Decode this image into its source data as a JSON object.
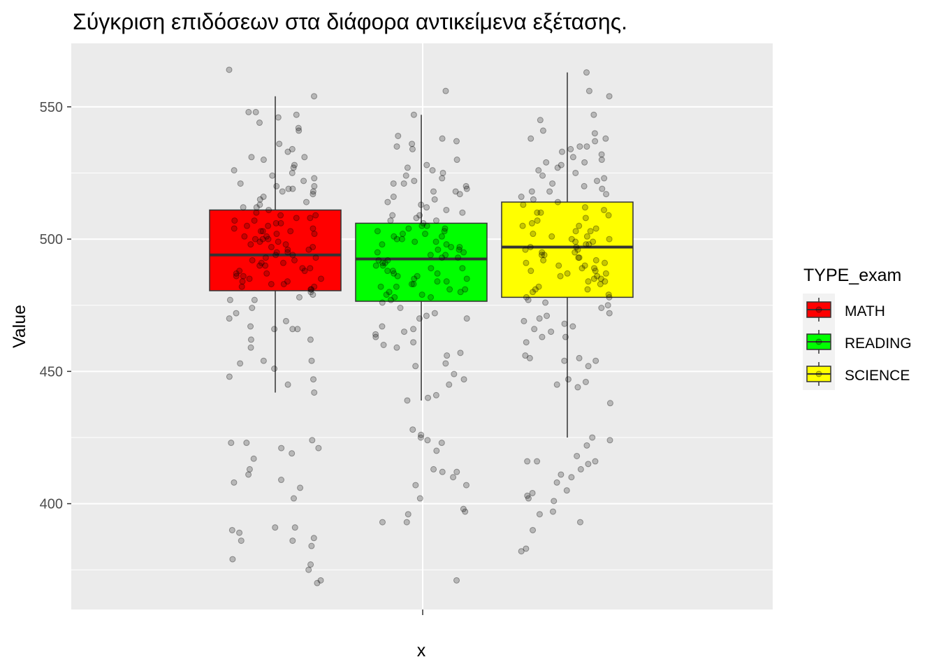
{
  "chart_data": {
    "type": "boxplot",
    "title": "Σύγκριση επιδόσεων στα διάφορα αντικείμενα εξέτασης.",
    "xlabel": "x",
    "ylabel": "Value",
    "ylim": [
      360,
      574
    ],
    "y_ticks": [
      400,
      450,
      500,
      550
    ],
    "y_tick_labels": [
      "400",
      "450",
      "500",
      "550"
    ],
    "grid": true,
    "legend": {
      "title": "TYPE_exam",
      "placement": "right"
    },
    "series": [
      {
        "name": "MATH",
        "color": "#ff0000",
        "q1": 480.5,
        "median": 494.0,
        "q3": 511.0,
        "whisker_low": 442.0,
        "whisker_high": 554.0,
        "points": [
          564,
          554,
          548,
          548,
          547,
          546,
          544,
          542,
          541,
          536,
          534,
          533,
          531,
          531,
          530,
          528,
          527,
          526,
          525,
          524,
          523,
          522,
          521,
          520,
          520,
          519,
          519,
          518,
          518,
          517,
          516,
          515,
          514,
          513,
          512,
          512,
          511,
          510,
          509,
          509,
          508,
          508,
          507,
          507,
          506,
          506,
          505,
          505,
          504,
          504,
          503,
          503,
          503,
          502,
          502,
          501,
          501,
          500,
          500,
          500,
          499,
          499,
          498,
          498,
          497,
          497,
          496,
          496,
          495,
          495,
          494,
          494,
          493,
          493,
          492,
          492,
          491,
          491,
          490,
          490,
          489,
          489,
          488,
          488,
          487,
          487,
          486,
          486,
          485,
          485,
          484,
          484,
          483,
          483,
          482,
          482,
          481,
          481,
          480,
          479,
          478,
          477,
          477,
          474,
          472,
          470,
          469,
          467,
          466,
          466,
          466,
          462,
          462,
          459,
          454,
          454,
          453,
          451,
          448,
          447,
          445,
          442,
          423,
          424,
          423,
          421,
          421,
          419,
          417,
          413,
          411,
          409,
          408,
          406,
          402,
          391,
          391,
          390,
          389,
          387,
          386,
          386,
          384,
          379,
          377,
          375,
          371,
          370
        ]
      },
      {
        "name": "READING",
        "color": "#00ff00",
        "q1": 476.5,
        "median": 492.5,
        "q3": 506.0,
        "whisker_low": 439.0,
        "whisker_high": 547.0,
        "points": [
          556,
          547,
          539,
          538,
          537,
          536,
          535,
          534,
          530,
          528,
          527,
          526,
          525,
          524,
          523,
          522,
          521,
          521,
          520,
          519,
          518,
          518,
          517,
          516,
          515,
          514,
          513,
          512,
          511,
          510,
          509,
          509,
          508,
          507,
          507,
          506,
          505,
          505,
          504,
          504,
          503,
          503,
          502,
          502,
          501,
          501,
          500,
          500,
          499,
          499,
          498,
          498,
          497,
          497,
          496,
          496,
          495,
          495,
          494,
          494,
          493,
          493,
          492,
          492,
          491,
          491,
          490,
          490,
          489,
          489,
          488,
          488,
          487,
          487,
          486,
          486,
          485,
          485,
          484,
          484,
          483,
          483,
          482,
          482,
          481,
          481,
          480,
          480,
          479,
          479,
          478,
          478,
          477,
          476,
          474,
          472,
          471,
          470,
          470,
          467,
          466,
          465,
          464,
          463,
          461,
          460,
          459,
          457,
          456,
          453,
          452,
          449,
          447,
          445,
          441,
          440,
          439,
          428,
          426,
          425,
          424,
          423,
          420,
          413,
          412,
          412,
          410,
          407,
          407,
          402,
          398,
          397,
          396,
          393,
          393,
          371
        ]
      },
      {
        "name": "SCIENCE",
        "color": "#ffff00",
        "q1": 478.0,
        "median": 497.0,
        "q3": 514.0,
        "whisker_low": 425.0,
        "whisker_high": 563.0,
        "points": [
          563,
          556,
          554,
          547,
          545,
          541,
          540,
          538,
          538,
          537,
          535,
          535,
          534,
          533,
          532,
          531,
          530,
          529,
          529,
          528,
          527,
          526,
          525,
          524,
          523,
          522,
          521,
          520,
          519,
          518,
          518,
          517,
          516,
          515,
          514,
          513,
          512,
          511,
          510,
          510,
          509,
          508,
          507,
          506,
          505,
          505,
          504,
          503,
          503,
          502,
          501,
          501,
          500,
          500,
          499,
          499,
          498,
          498,
          497,
          497,
          496,
          496,
          495,
          495,
          494,
          494,
          493,
          493,
          492,
          492,
          491,
          491,
          490,
          490,
          489,
          489,
          488,
          488,
          487,
          487,
          486,
          486,
          485,
          485,
          484,
          484,
          483,
          482,
          481,
          481,
          480,
          479,
          478,
          478,
          477,
          476,
          475,
          474,
          472,
          471,
          470,
          469,
          468,
          467,
          466,
          465,
          463,
          463,
          461,
          456,
          455,
          455,
          454,
          454,
          452,
          447,
          446,
          445,
          444,
          438,
          425,
          424,
          422,
          418,
          416,
          416,
          416,
          415,
          413,
          411,
          410,
          408,
          405,
          404,
          403,
          402,
          401,
          397,
          396,
          393,
          390,
          383,
          382
        ]
      }
    ]
  }
}
